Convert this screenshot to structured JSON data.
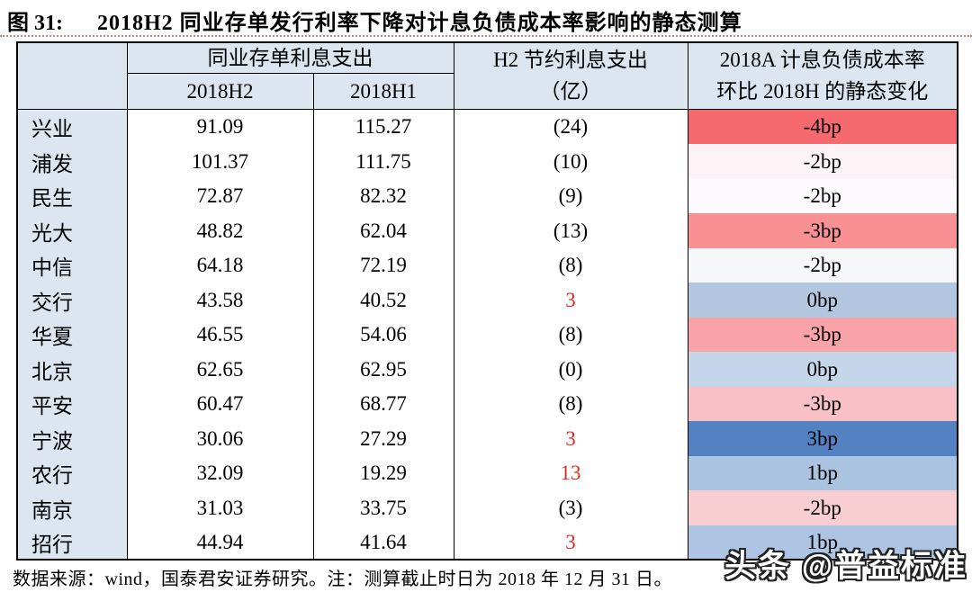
{
  "figure": {
    "label": "图 31:",
    "title": "2018H2 同业存单发行利率下降对计息负债成本率影响的静态测算"
  },
  "table": {
    "headers": {
      "interest_group": "同业存单利息支出",
      "col_2018h2": "2018H2",
      "col_2018h1": "2018H1",
      "saving_line1": "H2 节约利息支出",
      "saving_line2": "（亿）",
      "impact_line1": "2018A 计息负债成本率",
      "impact_line2": "环比 2018H 的静态变化"
    },
    "rows": [
      {
        "bank": "兴业",
        "h2_interest": "91.09",
        "h1_interest": "115.27",
        "saving": "(24)",
        "saving_red": false,
        "bp_change": "-4bp",
        "bp_color": "#f5696f"
      },
      {
        "bank": "浦发",
        "h2_interest": "101.37",
        "h1_interest": "111.75",
        "saving": "(10)",
        "saving_red": false,
        "bp_change": "-2bp",
        "bp_color": "#fbf3f5"
      },
      {
        "bank": "民生",
        "h2_interest": "72.87",
        "h1_interest": "82.32",
        "saving": "(9)",
        "saving_red": false,
        "bp_change": "-2bp",
        "bp_color": "#fcfafd"
      },
      {
        "bank": "光大",
        "h2_interest": "48.82",
        "h1_interest": "62.04",
        "saving": "(13)",
        "saving_red": false,
        "bp_change": "-3bp",
        "bp_color": "#f89094"
      },
      {
        "bank": "中信",
        "h2_interest": "64.18",
        "h1_interest": "72.19",
        "saving": "(8)",
        "saving_red": false,
        "bp_change": "-2bp",
        "bp_color": "#f5f7fb"
      },
      {
        "bank": "交行",
        "h2_interest": "43.58",
        "h1_interest": "40.52",
        "saving": "3",
        "saving_red": true,
        "bp_change": "0bp",
        "bp_color": "#b3c6e0"
      },
      {
        "bank": "华夏",
        "h2_interest": "46.55",
        "h1_interest": "54.06",
        "saving": "(8)",
        "saving_red": false,
        "bp_change": "-3bp",
        "bp_color": "#f9a2a8"
      },
      {
        "bank": "北京",
        "h2_interest": "62.65",
        "h1_interest": "62.95",
        "saving": "(0)",
        "saving_red": false,
        "bp_change": "0bp",
        "bp_color": "#c6d6ea"
      },
      {
        "bank": "平安",
        "h2_interest": "60.47",
        "h1_interest": "68.77",
        "saving": "(8)",
        "saving_red": false,
        "bp_change": "-3bp",
        "bp_color": "#f9c0c6"
      },
      {
        "bank": "宁波",
        "h2_interest": "30.06",
        "h1_interest": "27.29",
        "saving": "3",
        "saving_red": true,
        "bp_change": "3bp",
        "bp_color": "#5282c1"
      },
      {
        "bank": "农行",
        "h2_interest": "32.09",
        "h1_interest": "19.29",
        "saving": "13",
        "saving_red": true,
        "bp_change": "1bp",
        "bp_color": "#aac3e1"
      },
      {
        "bank": "南京",
        "h2_interest": "31.03",
        "h1_interest": "33.75",
        "saving": "(3)",
        "saving_red": false,
        "bp_change": "-2bp",
        "bp_color": "#f9ced3"
      },
      {
        "bank": "招行",
        "h2_interest": "44.94",
        "h1_interest": "41.64",
        "saving": "3",
        "saving_red": true,
        "bp_change": "1bp",
        "bp_color": "#adc5e2"
      }
    ]
  },
  "footer": {
    "note": "数据来源：wind，国泰君安证券研究。注：测算截止时日为 2018 年 12 月 31 日。"
  },
  "watermark": {
    "text": "头条 @普益标准"
  },
  "colors": {
    "header_bg": "#dce6f1",
    "saving_positive_red": "#e02a25",
    "border": "#000000",
    "title_rule": "#9b484a"
  }
}
